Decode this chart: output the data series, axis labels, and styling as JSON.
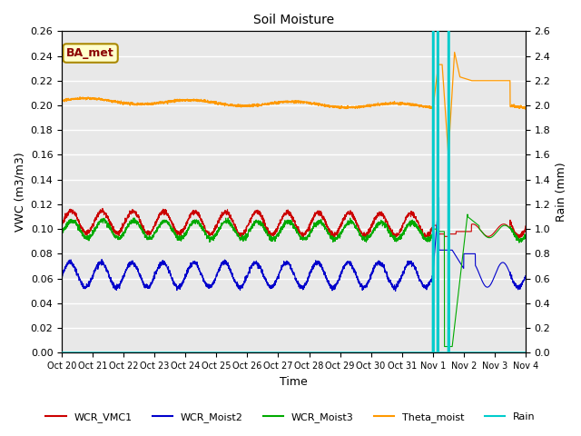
{
  "title": "Soil Moisture",
  "xlabel": "Time",
  "ylabel_left": "VWC (m3/m3)",
  "ylabel_right": "Rain (mm)",
  "ylim_left": [
    0.0,
    0.26
  ],
  "ylim_right": [
    0.0,
    2.6
  ],
  "yticks_left": [
    0.0,
    0.02,
    0.04,
    0.06,
    0.08,
    0.1,
    0.12,
    0.14,
    0.16,
    0.18,
    0.2,
    0.22,
    0.24,
    0.26
  ],
  "yticks_right": [
    0.0,
    0.2,
    0.4,
    0.6,
    0.8,
    1.0,
    1.2,
    1.4,
    1.6,
    1.8,
    2.0,
    2.2,
    2.4,
    2.6
  ],
  "xtick_labels": [
    "Oct 20",
    "Oct 21",
    "Oct 22",
    "Oct 23",
    "Oct 24",
    "Oct 25",
    "Oct 26",
    "Oct 27",
    "Oct 28",
    "Oct 29",
    "Oct 30",
    "Oct 31",
    "Nov 1",
    "Nov 2",
    "Nov 3",
    "Nov 4"
  ],
  "bg_color": "#e8e8e8",
  "grid_color": "#ffffff",
  "title_fontsize": 10,
  "label_fontsize": 9,
  "tick_fontsize": 8,
  "legend_fontsize": 8,
  "annotation_label": "BA_met",
  "annotation_bg": "#ffffcc",
  "annotation_border": "#aa8800",
  "wcr_vmc1_color": "#cc0000",
  "wcr_moist2_color": "#0000cc",
  "wcr_moist3_color": "#00aa00",
  "theta_color": "#ff9900",
  "rain_color": "#00cccc"
}
